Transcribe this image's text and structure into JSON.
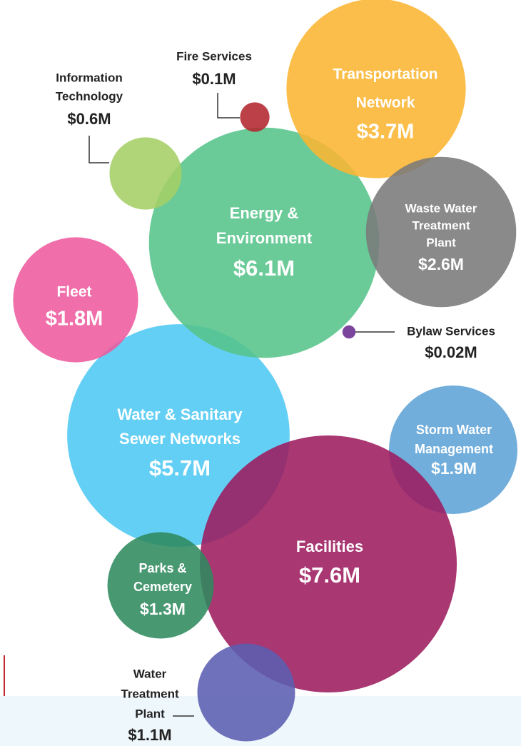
{
  "chart_data": {
    "type": "bubble",
    "categories": [
      [
        "Water & Sanitary",
        "Sewer Networks"
      ],
      [
        "Energy &",
        "Environment"
      ],
      [
        "Transportation",
        "Network"
      ],
      [
        "Waste Water",
        "Treatment",
        "Plant"
      ],
      [
        "Fire Services"
      ],
      [
        "Information",
        "Technology"
      ],
      [
        "Fleet"
      ],
      [
        "Bylaw Services"
      ],
      [
        "Storm Water",
        "Management"
      ],
      [
        "Facilities"
      ],
      [
        "Parks &",
        "Cemetery"
      ],
      [
        "Water",
        "Treatment",
        "Plant"
      ]
    ],
    "values": [
      5.7,
      6.1,
      3.7,
      2.6,
      0.1,
      0.6,
      1.8,
      0.02,
      1.9,
      7.6,
      1.3,
      1.1
    ],
    "value_labels": [
      "$5.7M",
      "$6.1M",
      "$3.7M",
      "$2.6M",
      "$0.1M",
      "$0.6M",
      "$1.8M",
      "$0.02M",
      "$1.9M",
      "$7.6M",
      "$1.3M",
      "$1.1M"
    ],
    "colors": [
      "#4fc8f2",
      "#55c48a",
      "#fbb531",
      "#7a7a7a",
      "#b3262d",
      "#a5cf66",
      "#ee5a9d",
      "#6a2b90",
      "#5fa3d6",
      "#9c1b5f",
      "#2f8a5e",
      "#5b5fb1"
    ]
  }
}
